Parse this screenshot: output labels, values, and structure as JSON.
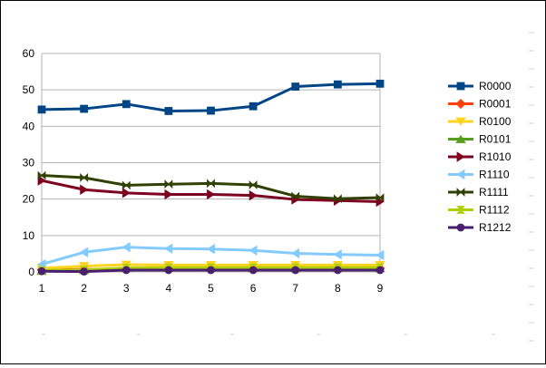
{
  "chart_data": {
    "type": "line",
    "title": "",
    "xlabel": "",
    "ylabel": "",
    "x": [
      1,
      2,
      3,
      4,
      5,
      6,
      7,
      8,
      9
    ],
    "x_tick_labels": [
      "1",
      "2",
      "3",
      "4",
      "5",
      "6",
      "7",
      "8",
      "9"
    ],
    "ylim": [
      0,
      60
    ],
    "y_ticks": [
      0,
      10,
      20,
      30,
      40,
      50,
      60
    ],
    "grid": "horizontal major gridlines",
    "legend_position": "right",
    "series": [
      {
        "name": "R0000",
        "color": "#004586",
        "marker": "square",
        "values": [
          44.6,
          44.8,
          46.1,
          44.2,
          44.3,
          45.5,
          50.9,
          51.5,
          51.7
        ]
      },
      {
        "name": "R0001",
        "color": "#ff420e",
        "marker": "diamond",
        "values": [
          0.6,
          0.7,
          0.8,
          0.9,
          0.9,
          0.9,
          1.0,
          1.0,
          1.0
        ]
      },
      {
        "name": "R0100",
        "color": "#ffd320",
        "marker": "triangle-down",
        "values": [
          1.0,
          1.6,
          2.0,
          1.9,
          1.9,
          1.9,
          1.9,
          1.9,
          1.9
        ]
      },
      {
        "name": "R0101",
        "color": "#579d1c",
        "marker": "triangle-up",
        "values": [
          0.3,
          0.5,
          1.0,
          1.1,
          1.1,
          1.0,
          1.0,
          1.0,
          1.0
        ]
      },
      {
        "name": "R1010",
        "color": "#7e0021",
        "marker": "triangle-right",
        "values": [
          25.1,
          22.6,
          21.7,
          21.3,
          21.3,
          21.0,
          19.9,
          19.6,
          19.3
        ]
      },
      {
        "name": "R1110",
        "color": "#83caff",
        "marker": "triangle-left",
        "values": [
          2.1,
          5.4,
          6.8,
          6.4,
          6.3,
          5.9,
          5.1,
          4.8,
          4.6
        ]
      },
      {
        "name": "R1111",
        "color": "#314004",
        "marker": "bowtie",
        "values": [
          26.5,
          25.9,
          23.8,
          24.1,
          24.3,
          23.9,
          20.8,
          20.1,
          20.4
        ]
      },
      {
        "name": "R1112",
        "color": "#aecf00",
        "marker": "hourglass",
        "values": [
          0.4,
          0.6,
          1.1,
          1.2,
          1.2,
          1.2,
          1.2,
          1.2,
          1.2
        ]
      },
      {
        "name": "R1212",
        "color": "#4b1f6f",
        "marker": "circle",
        "values": [
          0.2,
          0.1,
          0.5,
          0.5,
          0.5,
          0.5,
          0.5,
          0.5,
          0.5
        ]
      }
    ]
  }
}
